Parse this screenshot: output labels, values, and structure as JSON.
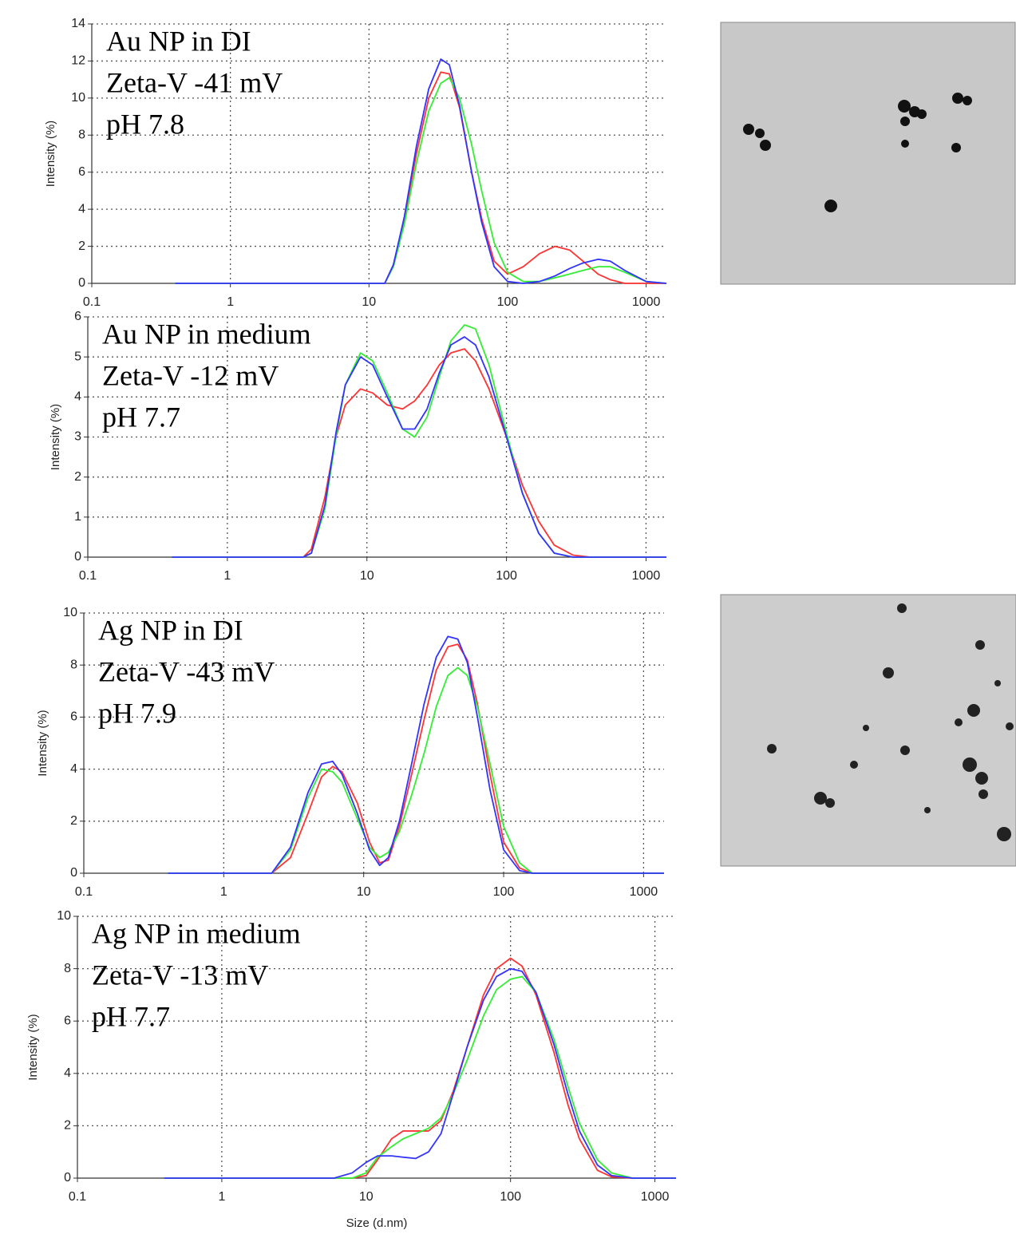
{
  "chart_data": [
    {
      "type": "line",
      "annotations": [
        "Au NP in DI",
        "Zeta-V -41 mV",
        "pH 7.8"
      ],
      "ylabel": "Intensity (%)",
      "xscale": "log",
      "grid": true,
      "xlim": [
        0.1,
        1400
      ],
      "xticks": [
        0.1,
        1,
        10,
        100,
        1000
      ],
      "ylim": [
        0,
        14
      ],
      "yticks": [
        0,
        2,
        4,
        6,
        8,
        10,
        12,
        14
      ],
      "x": [
        0.4,
        1,
        10,
        13,
        15,
        18,
        22,
        27,
        33,
        38,
        45,
        55,
        65,
        80,
        100,
        130,
        170,
        220,
        280,
        350,
        450,
        550,
        700,
        1000,
        1400
      ],
      "series": [
        {
          "color": "#ff3333",
          "values": [
            0,
            0,
            0,
            0,
            1,
            3.5,
            7,
            10,
            11.4,
            11.3,
            9.5,
            6,
            3.5,
            1.2,
            0.5,
            0.9,
            1.6,
            2.0,
            1.8,
            1.2,
            0.5,
            0.2,
            0,
            0,
            0
          ]
        },
        {
          "color": "#33ee33",
          "values": [
            0,
            0,
            0,
            0,
            0.9,
            3.2,
            6.5,
            9.3,
            10.8,
            11.1,
            10,
            7.5,
            5,
            2.2,
            0.6,
            0.1,
            0.1,
            0.3,
            0.5,
            0.7,
            0.9,
            0.9,
            0.6,
            0.1,
            0
          ]
        },
        {
          "color": "#3333ff",
          "values": [
            0,
            0,
            0,
            0,
            1,
            3.6,
            7.4,
            10.5,
            12.1,
            11.8,
            9.6,
            6,
            3.3,
            0.9,
            0.1,
            0,
            0.1,
            0.4,
            0.8,
            1.1,
            1.3,
            1.2,
            0.7,
            0.1,
            0
          ]
        }
      ]
    },
    {
      "type": "line",
      "annotations": [
        "Au NP in medium",
        "Zeta-V -12 mV",
        "pH 7.7"
      ],
      "ylabel": "Intensity (%)",
      "xscale": "log",
      "grid": true,
      "xlim": [
        0.1,
        1400
      ],
      "xticks": [
        0.1,
        1,
        10,
        100,
        1000
      ],
      "ylim": [
        0,
        6
      ],
      "yticks": [
        0,
        1,
        2,
        3,
        4,
        5,
        6
      ],
      "x": [
        0.4,
        1,
        3.5,
        4,
        5,
        6,
        7,
        9,
        11,
        14,
        18,
        22,
        27,
        33,
        40,
        50,
        60,
        75,
        100,
        130,
        170,
        220,
        300,
        400,
        1400
      ],
      "series": [
        {
          "color": "#ff3333",
          "values": [
            0,
            0,
            0,
            0.2,
            1.5,
            3,
            3.8,
            4.2,
            4.1,
            3.8,
            3.7,
            3.9,
            4.3,
            4.8,
            5.1,
            5.2,
            4.9,
            4.2,
            3.0,
            1.8,
            0.9,
            0.3,
            0.05,
            0,
            0
          ]
        },
        {
          "color": "#33ee33",
          "values": [
            0,
            0,
            0,
            0.1,
            1.2,
            3,
            4.3,
            5.1,
            4.9,
            4.1,
            3.2,
            3.0,
            3.5,
            4.5,
            5.4,
            5.8,
            5.7,
            4.8,
            3.1,
            1.6,
            0.6,
            0.1,
            0,
            0,
            0
          ]
        },
        {
          "color": "#3333ff",
          "values": [
            0,
            0,
            0,
            0.1,
            1.3,
            3.1,
            4.3,
            5.0,
            4.8,
            4.0,
            3.2,
            3.2,
            3.7,
            4.6,
            5.3,
            5.5,
            5.3,
            4.5,
            3.0,
            1.6,
            0.6,
            0.1,
            0,
            0,
            0
          ]
        }
      ]
    },
    {
      "type": "line",
      "annotations": [
        "Ag NP in DI",
        "Zeta-V -43 mV",
        "pH 7.9"
      ],
      "ylabel": "Intensity (%)",
      "xscale": "log",
      "grid": true,
      "xlim": [
        0.1,
        1400
      ],
      "xticks": [
        0.1,
        1,
        10,
        100,
        1000
      ],
      "ylim": [
        0,
        10
      ],
      "yticks": [
        0,
        2,
        4,
        6,
        8,
        10
      ],
      "x": [
        0.4,
        1,
        2.2,
        3,
        4,
        5,
        6,
        7,
        9,
        11,
        13,
        15,
        18,
        22,
        27,
        33,
        40,
        47,
        55,
        65,
        80,
        100,
        130,
        160,
        1400
      ],
      "series": [
        {
          "color": "#ff3333",
          "values": [
            0,
            0,
            0,
            0.6,
            2.3,
            3.7,
            4.1,
            3.9,
            2.7,
            1.2,
            0.4,
            0.5,
            1.8,
            3.8,
            5.9,
            7.8,
            8.7,
            8.8,
            8.2,
            6.5,
            3.8,
            1.2,
            0.2,
            0,
            0
          ]
        },
        {
          "color": "#33ee33",
          "values": [
            0,
            0,
            0,
            0.9,
            2.9,
            4.0,
            3.9,
            3.5,
            2.1,
            1.0,
            0.6,
            0.8,
            1.6,
            3.0,
            4.6,
            6.4,
            7.6,
            7.9,
            7.6,
            6.4,
            4.2,
            1.8,
            0.4,
            0,
            0
          ]
        },
        {
          "color": "#3333ff",
          "values": [
            0,
            0,
            0,
            1,
            3.1,
            4.2,
            4.3,
            3.8,
            2.3,
            0.9,
            0.3,
            0.6,
            2.0,
            4.2,
            6.5,
            8.3,
            9.1,
            9.0,
            8.1,
            6.0,
            3.2,
            0.9,
            0.1,
            0,
            0
          ]
        }
      ]
    },
    {
      "type": "line",
      "annotations": [
        "Ag NP in medium",
        "Zeta-V -13 mV",
        "pH 7.7"
      ],
      "ylabel": "Intensity (%)",
      "xlabel": "Size (d.nm)",
      "xscale": "log",
      "grid": true,
      "xlim": [
        0.1,
        1400
      ],
      "xticks": [
        0.1,
        1,
        10,
        100,
        1000
      ],
      "ylim": [
        0,
        10
      ],
      "yticks": [
        0,
        2,
        4,
        6,
        8,
        10
      ],
      "x": [
        0.4,
        1,
        6,
        8,
        10,
        12,
        15,
        18,
        22,
        27,
        33,
        40,
        50,
        65,
        80,
        100,
        120,
        150,
        200,
        250,
        300,
        400,
        500,
        700,
        1400
      ],
      "series": [
        {
          "color": "#ff3333",
          "values": [
            0,
            0,
            0,
            0,
            0.1,
            0.7,
            1.5,
            1.8,
            1.8,
            1.8,
            2.2,
            3.3,
            5,
            7,
            8,
            8.4,
            8.1,
            7,
            4.8,
            2.8,
            1.5,
            0.3,
            0.05,
            0,
            0
          ]
        },
        {
          "color": "#33ee33",
          "values": [
            0,
            0,
            0,
            0,
            0.2,
            0.8,
            1.2,
            1.5,
            1.7,
            1.9,
            2.3,
            3.2,
            4.5,
            6.2,
            7.2,
            7.6,
            7.7,
            7.1,
            5.3,
            3.5,
            2.1,
            0.7,
            0.2,
            0,
            0
          ]
        },
        {
          "color": "#3333ff",
          "values": [
            0,
            0,
            0,
            0.2,
            0.6,
            0.85,
            0.85,
            0.8,
            0.75,
            1,
            1.7,
            3.2,
            5,
            6.8,
            7.7,
            8,
            7.9,
            7.1,
            5.1,
            3.2,
            1.8,
            0.5,
            0.1,
            0,
            0
          ]
        }
      ]
    }
  ]
}
